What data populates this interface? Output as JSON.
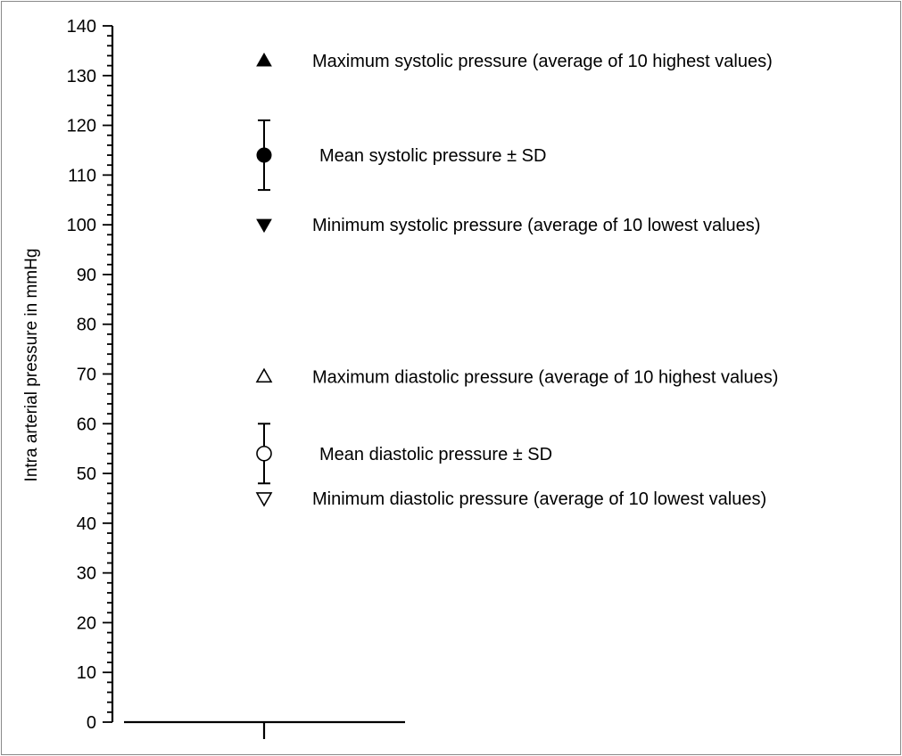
{
  "chart_data": {
    "type": "scatter",
    "title": "",
    "xlabel": "",
    "ylabel": "Intra arterial pressure in mmHg",
    "ylim": [
      0,
      140
    ],
    "y_major_step": 10,
    "y_minor_step": 2,
    "grid": false,
    "legend": "none",
    "points": [
      {
        "marker": "triangle-up-filled",
        "y": 133,
        "label": "Maximum systolic pressure (average of 10 highest values)"
      },
      {
        "marker": "circle-filled",
        "y": 114,
        "err_low": 107,
        "err_high": 121,
        "label": "Mean systolic pressure ± SD"
      },
      {
        "marker": "triangle-down-filled",
        "y": 100,
        "label": "Minimum systolic pressure (average of 10 lowest values)"
      },
      {
        "marker": "triangle-up-open",
        "y": 69.5,
        "label": "Maximum diastolic pressure (average of 10 highest values)"
      },
      {
        "marker": "circle-open",
        "y": 54,
        "err_low": 48,
        "err_high": 60,
        "label": "Mean diastolic pressure ± SD"
      },
      {
        "marker": "triangle-down-open",
        "y": 45,
        "label": "Minimum diastolic pressure (average of 10 lowest values)"
      }
    ],
    "colors": {
      "ink": "#000000",
      "frame": "#8a8a8a"
    }
  }
}
